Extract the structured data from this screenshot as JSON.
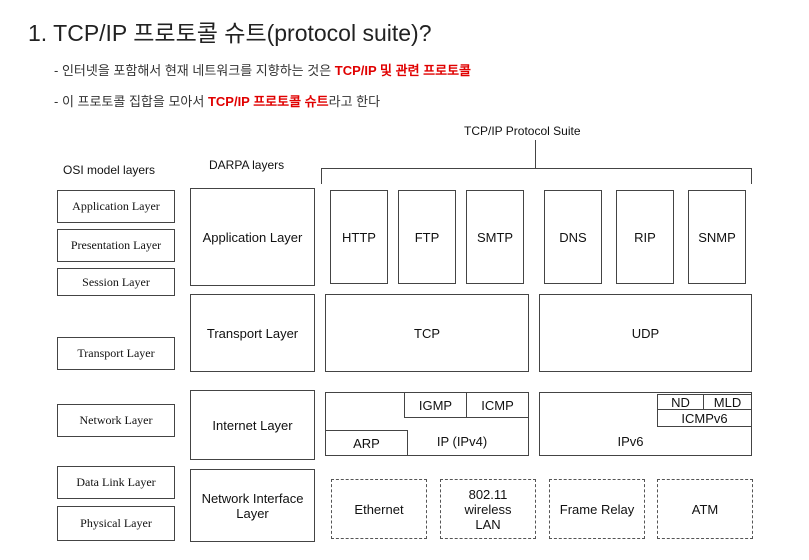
{
  "title": "1. TCP/IP 프로토콜 슈트(protocol suite)?",
  "bullets": [
    {
      "pre": "- 인터넷을 포함해서 현재 네트워크를 지향하는 것은 ",
      "hl": "TCP/IP 및 관련 프로토콜",
      "post": ""
    },
    {
      "pre": "- 이 프로토콜 집합을 모아서 ",
      "hl": "TCP/IP 프로토콜 슈트",
      "post": "라고 한다"
    }
  ],
  "diagram": {
    "suite_label": "TCP/IP Protocol Suite",
    "osi_heading": "OSI model layers",
    "darpa_heading": "DARPA layers",
    "osi_layers": {
      "application": "Application Layer",
      "presentation": "Presentation Layer",
      "session": "Session Layer",
      "transport": "Transport Layer",
      "network": "Network Layer",
      "datalink": "Data Link Layer",
      "physical": "Physical Layer"
    },
    "darpa_layers": {
      "application": "Application Layer",
      "transport": "Transport Layer",
      "internet": "Internet Layer",
      "netif_line1": "Network Interface",
      "netif_line2": "Layer"
    },
    "app_protocols": {
      "http": "HTTP",
      "ftp": "FTP",
      "smtp": "SMTP",
      "dns": "DNS",
      "rip": "RIP",
      "snmp": "SNMP"
    },
    "transport_protocols": {
      "tcp": "TCP",
      "udp": "UDP"
    },
    "internet_protocols": {
      "igmp": "IGMP",
      "icmp": "ICMP",
      "arp": "ARP",
      "ipv4": "IP (IPv4)",
      "nd": "ND",
      "mld": "MLD",
      "icmpv6": "ICMPv6",
      "ipv6": "IPv6"
    },
    "link_protocols": {
      "ethernet": "Ethernet",
      "wlan_line1": "802.11",
      "wlan_line2": "wireless",
      "wlan_line3": "LAN",
      "frame_relay": "Frame Relay",
      "atm": "ATM"
    }
  }
}
